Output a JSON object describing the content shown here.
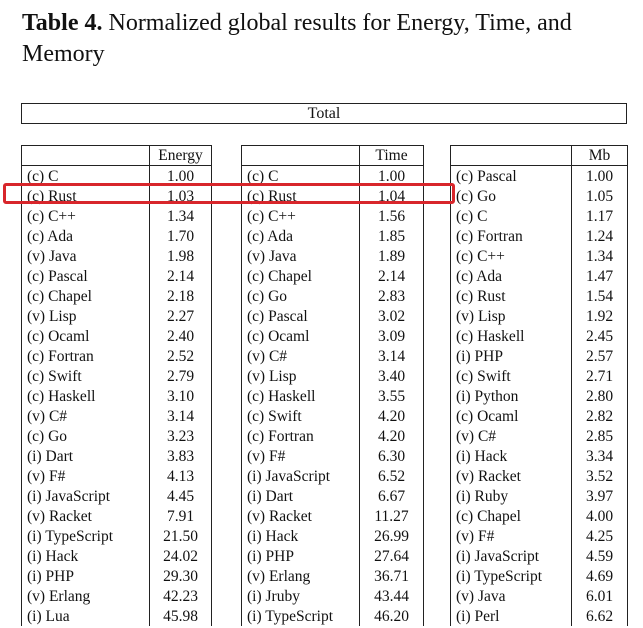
{
  "title": {
    "label": "Table 4.",
    "text": "Normalized global results for Energy, Time, and Memory"
  },
  "total_label": "Total",
  "highlight_color": "#d8262b",
  "tables": {
    "energy": {
      "header": "Energy",
      "rows": [
        [
          "(c) C",
          "1.00"
        ],
        [
          "(c) Rust",
          "1.03"
        ],
        [
          "(c) C++",
          "1.34"
        ],
        [
          "(c) Ada",
          "1.70"
        ],
        [
          "(v) Java",
          "1.98"
        ],
        [
          "(c) Pascal",
          "2.14"
        ],
        [
          "(c) Chapel",
          "2.18"
        ],
        [
          "(v) Lisp",
          "2.27"
        ],
        [
          "(c) Ocaml",
          "2.40"
        ],
        [
          "(c) Fortran",
          "2.52"
        ],
        [
          "(c) Swift",
          "2.79"
        ],
        [
          "(c) Haskell",
          "3.10"
        ],
        [
          "(v) C#",
          "3.14"
        ],
        [
          "(c) Go",
          "3.23"
        ],
        [
          "(i) Dart",
          "3.83"
        ],
        [
          "(v) F#",
          "4.13"
        ],
        [
          "(i) JavaScript",
          "4.45"
        ],
        [
          "(v) Racket",
          "7.91"
        ],
        [
          "(i) TypeScript",
          "21.50"
        ],
        [
          "(i) Hack",
          "24.02"
        ],
        [
          "(i) PHP",
          "29.30"
        ],
        [
          "(v) Erlang",
          "42.23"
        ],
        [
          "(i) Lua",
          "45.98"
        ]
      ]
    },
    "time": {
      "header": "Time",
      "rows": [
        [
          "(c) C",
          "1.00"
        ],
        [
          "(c) Rust",
          "1.04"
        ],
        [
          "(c) C++",
          "1.56"
        ],
        [
          "(c) Ada",
          "1.85"
        ],
        [
          "(v) Java",
          "1.89"
        ],
        [
          "(c) Chapel",
          "2.14"
        ],
        [
          "(c) Go",
          "2.83"
        ],
        [
          "(c) Pascal",
          "3.02"
        ],
        [
          "(c) Ocaml",
          "3.09"
        ],
        [
          "(v) C#",
          "3.14"
        ],
        [
          "(v) Lisp",
          "3.40"
        ],
        [
          "(c) Haskell",
          "3.55"
        ],
        [
          "(c) Swift",
          "4.20"
        ],
        [
          "(c) Fortran",
          "4.20"
        ],
        [
          "(v) F#",
          "6.30"
        ],
        [
          "(i) JavaScript",
          "6.52"
        ],
        [
          "(i) Dart",
          "6.67"
        ],
        [
          "(v) Racket",
          "11.27"
        ],
        [
          "(i) Hack",
          "26.99"
        ],
        [
          "(i) PHP",
          "27.64"
        ],
        [
          "(v) Erlang",
          "36.71"
        ],
        [
          "(i) Jruby",
          "43.44"
        ],
        [
          "(i) TypeScript",
          "46.20"
        ]
      ]
    },
    "mb": {
      "header": "Mb",
      "rows": [
        [
          "(c) Pascal",
          "1.00"
        ],
        [
          "(c) Go",
          "1.05"
        ],
        [
          "(c) C",
          "1.17"
        ],
        [
          "(c) Fortran",
          "1.24"
        ],
        [
          "(c) C++",
          "1.34"
        ],
        [
          "(c) Ada",
          "1.47"
        ],
        [
          "(c) Rust",
          "1.54"
        ],
        [
          "(v) Lisp",
          "1.92"
        ],
        [
          "(c) Haskell",
          "2.45"
        ],
        [
          "(i) PHP",
          "2.57"
        ],
        [
          "(c) Swift",
          "2.71"
        ],
        [
          "(i) Python",
          "2.80"
        ],
        [
          "(c) Ocaml",
          "2.82"
        ],
        [
          "(v) C#",
          "2.85"
        ],
        [
          "(i) Hack",
          "3.34"
        ],
        [
          "(v) Racket",
          "3.52"
        ],
        [
          "(i) Ruby",
          "3.97"
        ],
        [
          "(c) Chapel",
          "4.00"
        ],
        [
          "(v) F#",
          "4.25"
        ],
        [
          "(i) JavaScript",
          "4.59"
        ],
        [
          "(i) TypeScript",
          "4.69"
        ],
        [
          "(v) Java",
          "6.01"
        ],
        [
          "(i) Perl",
          "6.62"
        ]
      ]
    }
  }
}
